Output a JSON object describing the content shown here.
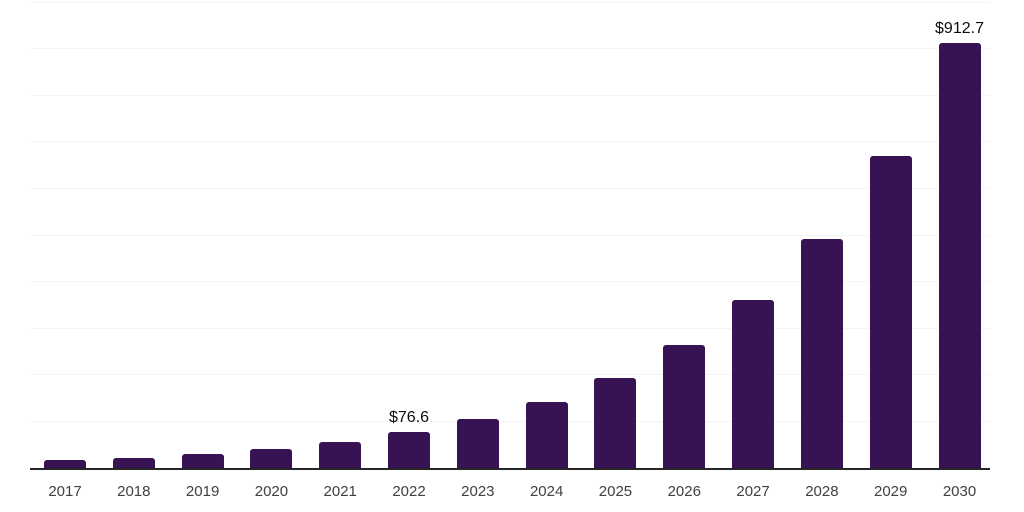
{
  "chart_data": {
    "type": "bar",
    "title": "",
    "xlabel": "",
    "ylabel": "",
    "categories": [
      "2017",
      "2018",
      "2019",
      "2020",
      "2021",
      "2022",
      "2023",
      "2024",
      "2025",
      "2026",
      "2027",
      "2028",
      "2029",
      "2030"
    ],
    "values": [
      16.3,
      22.2,
      30.3,
      41.3,
      56.2,
      76.6,
      104.4,
      142.3,
      194.0,
      264.4,
      360.4,
      491.4,
      669.7,
      912.7
    ],
    "data_labels": [
      "",
      "",
      "",
      "",
      "",
      "$76.6",
      "",
      "",
      "",
      "",
      "",
      "",
      "",
      "$912.7"
    ],
    "ylim": [
      0,
      1000
    ],
    "grid_step": 100,
    "grid": true,
    "legend": false,
    "colors": {
      "bar": "#371353",
      "grid": "#f4f4f4",
      "axis": "#262626",
      "tick_label": "#404040",
      "data_label": "#0d0d0d",
      "background": "#ffffff"
    }
  }
}
